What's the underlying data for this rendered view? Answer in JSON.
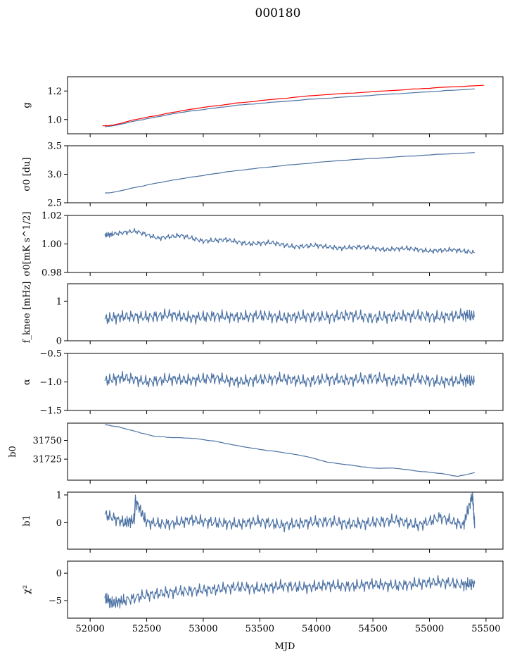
{
  "figure_title": "000180",
  "x_axis_label": "MJD",
  "colors": {
    "series": "#4c72a4",
    "overlay": "#ff0000"
  },
  "chart_data": [
    {
      "id": "g",
      "type": "line",
      "ylabel": "g",
      "xlim": [
        51800,
        55650
      ],
      "ylim": [
        0.9,
        1.3
      ],
      "yticks": [
        1.0,
        1.2
      ],
      "ytick_labels": [
        "1.0",
        "1.2"
      ],
      "series": [
        {
          "color": "#4c72a4",
          "x": [
            52130,
            52200,
            52400,
            52600,
            52800,
            53000,
            53300,
            53600,
            54000,
            54400,
            54800,
            55100,
            55400
          ],
          "y": [
            0.95,
            0.955,
            0.99,
            1.02,
            1.05,
            1.07,
            1.1,
            1.12,
            1.145,
            1.165,
            1.185,
            1.2,
            1.215
          ]
        },
        {
          "color": "#ff0000",
          "x": [
            52110,
            52200,
            52400,
            52600,
            52800,
            53000,
            53300,
            53600,
            54000,
            54400,
            54800,
            55100,
            55480
          ],
          "y": [
            0.955,
            0.96,
            1.0,
            1.03,
            1.06,
            1.085,
            1.115,
            1.14,
            1.17,
            1.19,
            1.21,
            1.225,
            1.24
          ]
        }
      ]
    },
    {
      "id": "sigma0-du",
      "type": "line",
      "ylabel": "σ0 [du]",
      "xlim": [
        51800,
        55650
      ],
      "ylim": [
        2.5,
        3.5
      ],
      "yticks": [
        2.5,
        3.0,
        3.5
      ],
      "ytick_labels": [
        "2.5",
        "3.0",
        "3.5"
      ],
      "series": [
        {
          "color": "#4c72a4",
          "x": [
            52130,
            52200,
            52400,
            52600,
            52800,
            53000,
            53200,
            53500,
            53800,
            54200,
            54600,
            55000,
            55400
          ],
          "y": [
            2.67,
            2.68,
            2.77,
            2.85,
            2.92,
            2.98,
            3.04,
            3.11,
            3.17,
            3.24,
            3.29,
            3.34,
            3.38
          ]
        }
      ]
    },
    {
      "id": "sigma0-mk",
      "type": "line",
      "ylabel": "σ0[mK s^1/2]",
      "xlim": [
        51800,
        55650
      ],
      "ylim": [
        0.98,
        1.02
      ],
      "yticks": [
        0.98,
        1.0,
        1.02
      ],
      "ytick_labels": [
        "0.98",
        "1.00",
        "1.02"
      ],
      "series": [
        {
          "color": "#4c72a4",
          "x": [
            52130,
            52200,
            52400,
            52600,
            52800,
            53000,
            53200,
            53400,
            53600,
            53800,
            54000,
            54200,
            54400,
            54600,
            54800,
            55000,
            55200,
            55400
          ],
          "y": [
            1.006,
            1.007,
            1.009,
            1.004,
            1.006,
            1.002,
            1.003,
            1.0,
            1.001,
            0.998,
            0.999,
            0.997,
            0.998,
            0.996,
            0.997,
            0.995,
            0.996,
            0.994
          ]
        }
      ]
    },
    {
      "id": "fknee",
      "type": "line",
      "ylabel": "f_knee [mHz]",
      "xlim": [
        51800,
        55650
      ],
      "ylim": [
        0,
        1.45
      ],
      "yticks": [
        0,
        1
      ],
      "ytick_labels": [
        "0",
        "1"
      ],
      "series": [
        {
          "color": "#4c72a4",
          "x": [
            52130,
            52300,
            52500,
            52700,
            52900,
            53100,
            53300,
            53500,
            53700,
            53900,
            54100,
            54300,
            54500,
            54700,
            54900,
            55100,
            55300,
            55400
          ],
          "y": [
            0.55,
            0.62,
            0.6,
            0.66,
            0.58,
            0.63,
            0.6,
            0.64,
            0.59,
            0.62,
            0.6,
            0.65,
            0.58,
            0.62,
            0.64,
            0.6,
            0.66,
            0.62
          ]
        }
      ]
    },
    {
      "id": "alpha",
      "type": "line",
      "ylabel": "α",
      "xlim": [
        51800,
        55650
      ],
      "ylim": [
        -1.5,
        -0.5
      ],
      "yticks": [
        -1.5,
        -1.0,
        -0.5
      ],
      "ytick_labels": [
        "−1.5",
        "−1.0",
        "−0.5"
      ],
      "series": [
        {
          "color": "#4c72a4",
          "x": [
            52130,
            52300,
            52500,
            52700,
            52900,
            53100,
            53300,
            53500,
            53700,
            53900,
            54100,
            54300,
            54500,
            54700,
            54900,
            55100,
            55300,
            55400
          ],
          "y": [
            -0.98,
            -0.92,
            -1.0,
            -0.95,
            -0.97,
            -0.93,
            -1.0,
            -0.96,
            -0.94,
            -0.99,
            -0.95,
            -0.97,
            -0.93,
            -0.98,
            -0.95,
            -1.0,
            -0.97,
            -0.99
          ]
        }
      ]
    },
    {
      "id": "b0",
      "type": "line",
      "ylabel": "b0",
      "xlim": [
        51800,
        55650
      ],
      "ylim": [
        31697,
        31773
      ],
      "yticks": [
        31725,
        31750
      ],
      "ytick_labels": [
        "31725",
        "31750"
      ],
      "series": [
        {
          "color": "#4c72a4",
          "x": [
            52130,
            52250,
            52400,
            52550,
            52700,
            52900,
            53100,
            53300,
            53500,
            53700,
            53900,
            54100,
            54300,
            54500,
            54700,
            54900,
            55100,
            55250,
            55400
          ],
          "y": [
            31771,
            31768,
            31762,
            31756,
            31754,
            31753,
            31749,
            31743,
            31738,
            31734,
            31729,
            31721,
            31717,
            31713,
            31713,
            31709,
            31706,
            31702,
            31707
          ]
        }
      ]
    },
    {
      "id": "b1",
      "type": "line",
      "ylabel": "b1",
      "xlim": [
        51800,
        55650
      ],
      "ylim": [
        -0.95,
        1.1
      ],
      "yticks": [
        0,
        1
      ],
      "ytick_labels": [
        "0",
        "1"
      ],
      "series": [
        {
          "color": "#4c72a4",
          "x": [
            52130,
            52300,
            52390,
            52400,
            52500,
            52700,
            52900,
            53100,
            53300,
            53500,
            53700,
            53900,
            54100,
            54300,
            54500,
            54700,
            54900,
            55100,
            55300,
            55380,
            55400
          ],
          "y": [
            0.3,
            0.0,
            0.1,
            0.8,
            0.0,
            -0.05,
            0.1,
            0.0,
            -0.05,
            0.05,
            -0.1,
            0.0,
            0.05,
            -0.05,
            0.0,
            0.1,
            -0.1,
            0.2,
            -0.1,
            1.0,
            -0.1
          ]
        }
      ]
    },
    {
      "id": "chi2",
      "type": "line",
      "ylabel": "χ²",
      "xlim": [
        51800,
        55650
      ],
      "ylim": [
        -8.2,
        2.2
      ],
      "yticks": [
        -5,
        0
      ],
      "ytick_labels": [
        "−5",
        "0"
      ],
      "series": [
        {
          "color": "#4c72a4",
          "x": [
            52130,
            52200,
            52300,
            52500,
            52700,
            52900,
            53100,
            53300,
            53500,
            53700,
            53900,
            54100,
            54300,
            54500,
            54700,
            54900,
            55100,
            55300,
            55400
          ],
          "y": [
            -4.5,
            -5.5,
            -5.0,
            -4.0,
            -3.5,
            -3.2,
            -3.0,
            -2.5,
            -2.8,
            -2.3,
            -2.6,
            -2.2,
            -2.4,
            -2.0,
            -2.3,
            -1.9,
            -1.6,
            -2.1,
            -1.9
          ]
        }
      ]
    }
  ],
  "x_axis": {
    "xlim": [
      51800,
      55650
    ],
    "xticks": [
      52000,
      52500,
      53000,
      53500,
      54000,
      54500,
      55000,
      55500
    ],
    "xtick_labels": [
      "52000",
      "52500",
      "53000",
      "53500",
      "54000",
      "54500",
      "55000",
      "55500"
    ]
  }
}
